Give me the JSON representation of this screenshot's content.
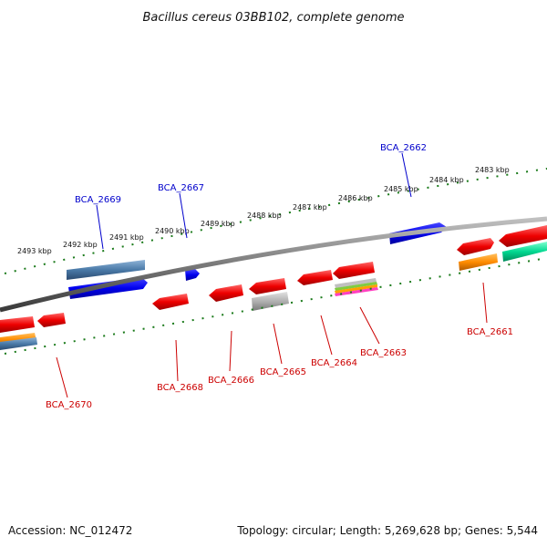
{
  "title": "Bacillus cereus 03BB102, complete genome",
  "footer": {
    "accession": "Accession: NC_012472",
    "summary": "Topology: circular; Length: 5,269,628 bp; Genes: 5,544"
  },
  "colors": {
    "forward_label": "#0000cc",
    "reverse_label": "#cc0000",
    "ruler_ticks": "#1a7a1a",
    "backbone": "#808080",
    "gene_blue": "#0000ee",
    "gene_red": "#ee0000",
    "gene_steel": "#4a7aa8",
    "gene_grey": "#b0b0b0",
    "gene_orange": "#ff8c00",
    "gene_teal": "#00d890"
  },
  "scale_labels": [
    "2493 kbp",
    "2492 kbp",
    "2491 kbp",
    "2490 kbp",
    "2489 kbp",
    "2488 kbp",
    "2487 kbp",
    "2486 kbp",
    "2485 kbp",
    "2484 kbp",
    "2483 kbp"
  ],
  "forward_gene_labels": [
    "BCA_2669",
    "BCA_2667",
    "BCA_2662"
  ],
  "reverse_gene_labels": [
    "BCA_2670",
    "BCA_2668",
    "BCA_2666",
    "BCA_2665",
    "BCA_2664",
    "BCA_2663",
    "BCA_2661"
  ]
}
